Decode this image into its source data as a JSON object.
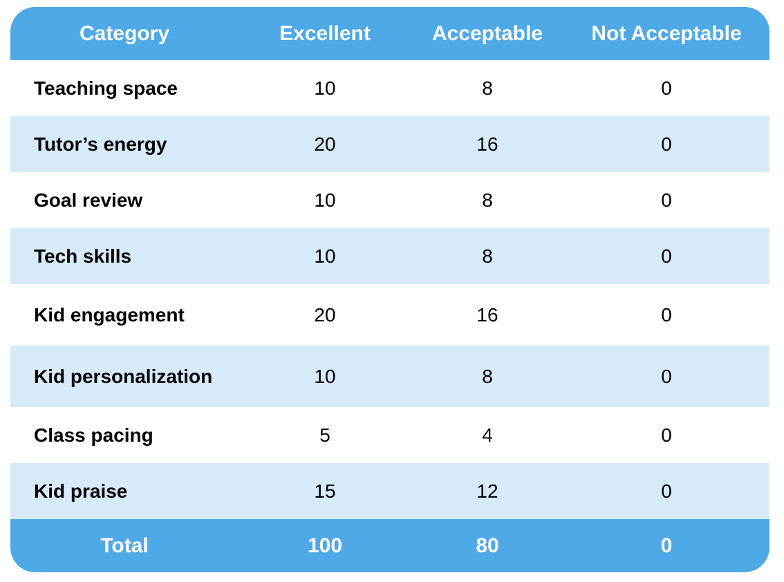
{
  "columns": [
    "Category",
    "Excellent",
    "Acceptable",
    "Not Acceptable"
  ],
  "rows": [
    {
      "category": "Teaching space",
      "excellent": "10",
      "acceptable": "8",
      "not_acceptable": "0"
    },
    {
      "category": "Tutor’s energy",
      "excellent": "20",
      "acceptable": "16",
      "not_acceptable": "0"
    },
    {
      "category": "Goal review",
      "excellent": "10",
      "acceptable": "8",
      "not_acceptable": "0"
    },
    {
      "category": "Tech skills",
      "excellent": "10",
      "acceptable": "8",
      "not_acceptable": "0"
    },
    {
      "category": "Kid engagement",
      "excellent": "20",
      "acceptable": "16",
      "not_acceptable": "0"
    },
    {
      "category": "Kid personalization",
      "excellent": "10",
      "acceptable": "8",
      "not_acceptable": "0"
    },
    {
      "category": "Class pacing",
      "excellent": "5",
      "acceptable": "4",
      "not_acceptable": "0"
    },
    {
      "category": "Kid praise",
      "excellent": "15",
      "acceptable": "12",
      "not_acceptable": "0"
    }
  ],
  "total": {
    "label": "Total",
    "excellent": "100",
    "acceptable": "80",
    "not_acceptable": "0"
  },
  "colors": {
    "header_bg": "#4fa9e6",
    "alt_row_bg": "#d6eaf8",
    "text": "#000000",
    "header_text": "#ffffff"
  }
}
